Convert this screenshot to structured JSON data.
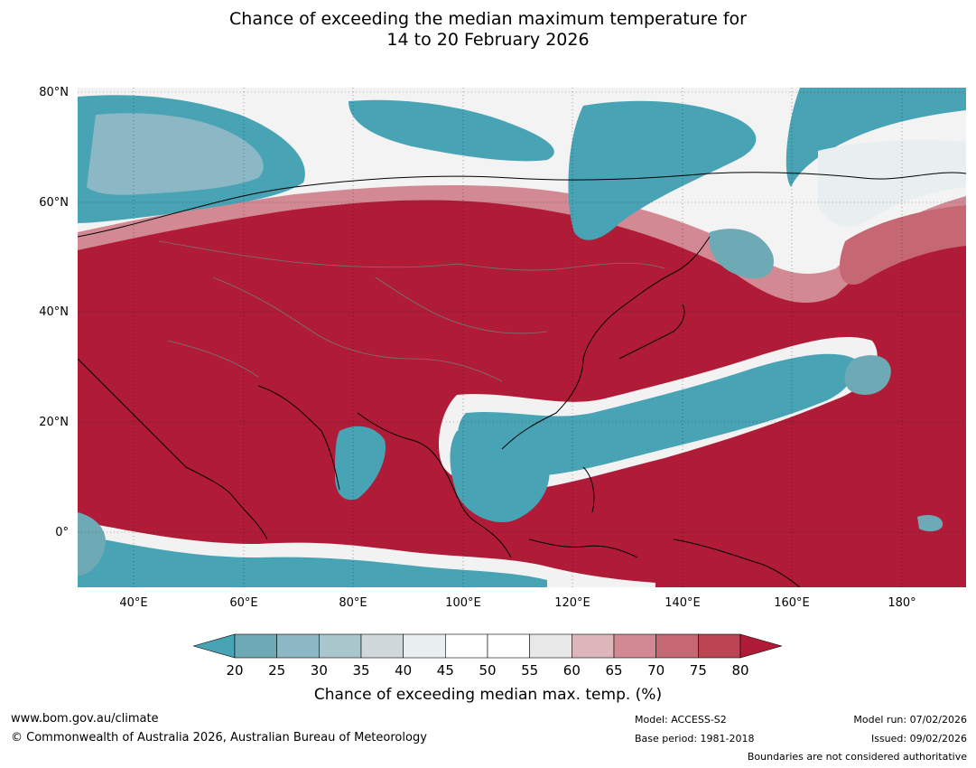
{
  "title": {
    "line1": "Chance of exceeding the median maximum temperature for",
    "line2": "14 to 20 February 2026"
  },
  "map": {
    "lat_labels": [
      "80°N",
      "60°N",
      "40°N",
      "20°N",
      "0°"
    ],
    "lon_labels": [
      "40°E",
      "60°E",
      "80°E",
      "100°E",
      "120°E",
      "140°E",
      "160°E",
      "180°"
    ],
    "colors": {
      "high": "#b01c38",
      "low": "#48a3b4",
      "neutral": "#ffffff"
    }
  },
  "colorbar": {
    "ticks": [
      "20",
      "25",
      "30",
      "35",
      "40",
      "45",
      "50",
      "55",
      "60",
      "65",
      "70",
      "75",
      "80"
    ],
    "colors": [
      "#48a3b4",
      "#6eaab5",
      "#8bb8c4",
      "#a9c6cd",
      "#cfd9dc",
      "#e9eef0",
      "#ffffff",
      "#ffffff",
      "#e8e8e8",
      "#ddb6bc",
      "#d28993",
      "#c66774",
      "#bc4554",
      "#b01c38"
    ],
    "label": "Chance of exceeding median max. temp. (%)"
  },
  "footer": {
    "website": "www.bom.gov.au/climate",
    "copyright": "© Commonwealth of Australia 2026, Australian Bureau of Meteorology",
    "model": "Model: ACCESS-S2",
    "base_period": "Base period: 1981-2018",
    "model_run": "Model run: 07/02/2026",
    "issued": "Issued: 09/02/2026",
    "disclaimer": "Boundaries are not considered authoritative"
  }
}
